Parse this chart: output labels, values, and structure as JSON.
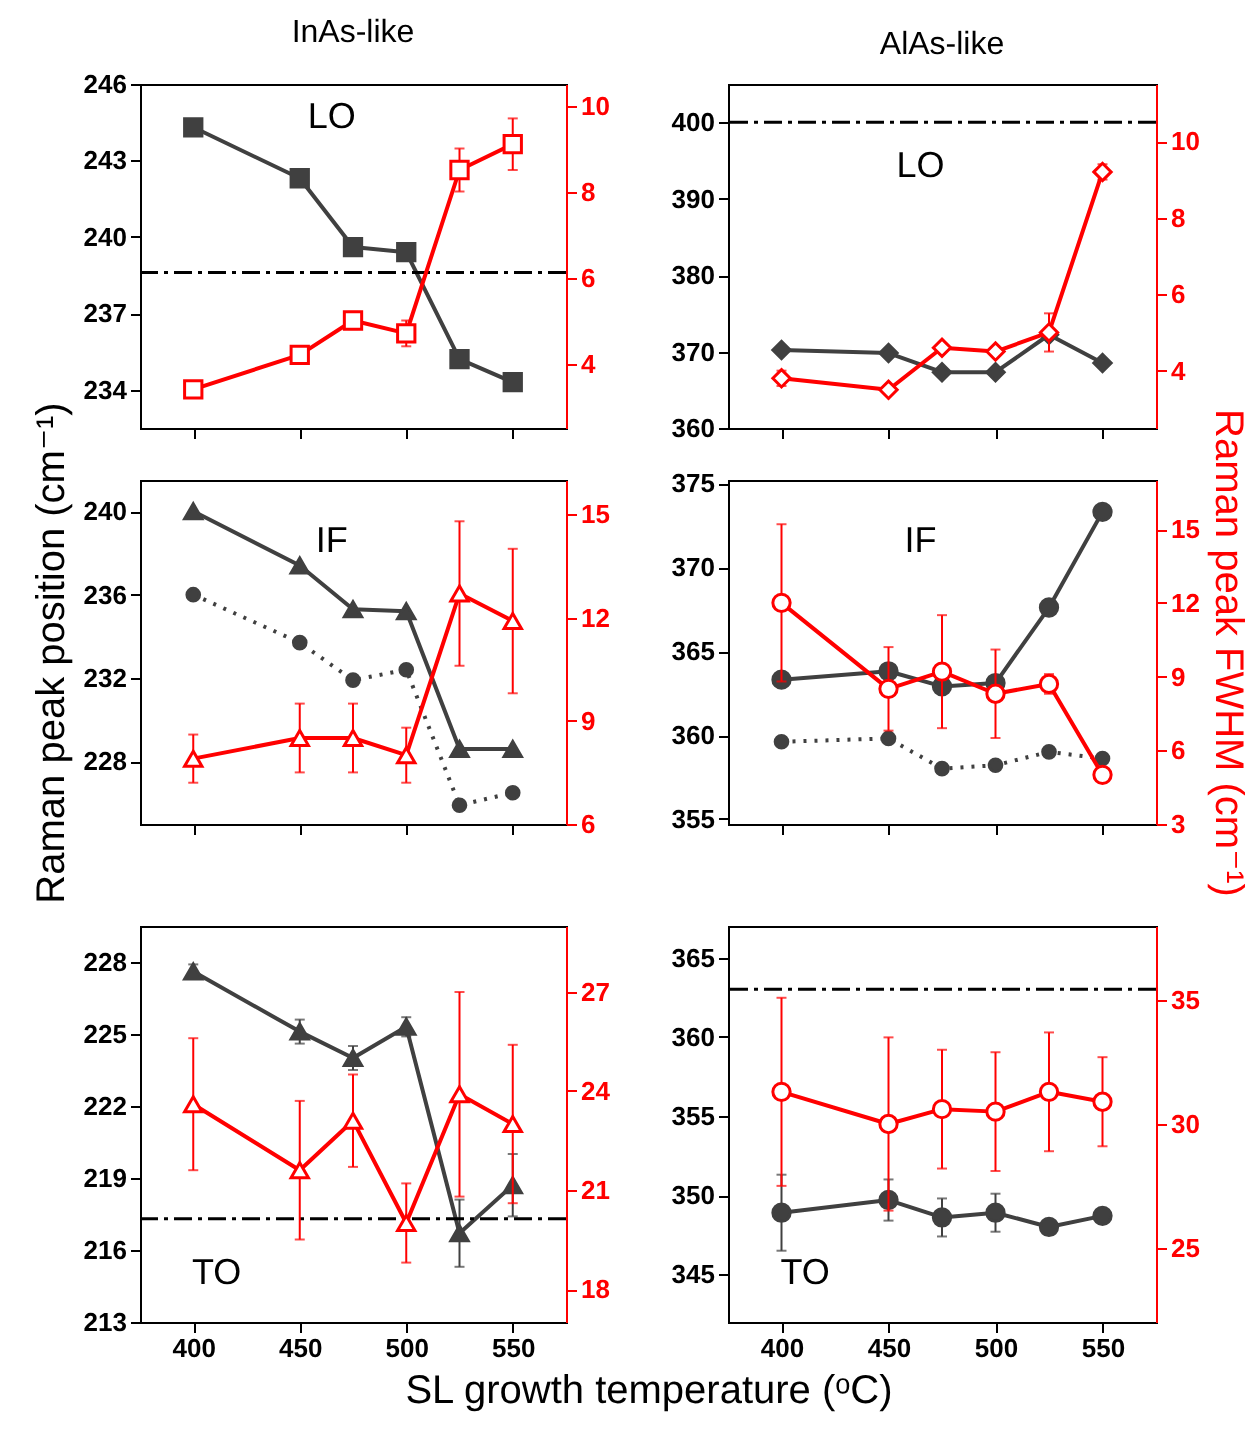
{
  "chart_data": [
    {
      "type": "line",
      "title": "InAs-like",
      "x": [
        400,
        450,
        475,
        500,
        525,
        550
      ],
      "xlim": [
        375,
        575
      ],
      "xticks": [
        400,
        450,
        500,
        550
      ],
      "ylim": [
        232.5,
        246
      ],
      "yticks": [
        234,
        237,
        240,
        243,
        246
      ],
      "y2lim": [
        2.5,
        10.5
      ],
      "y2ticks": [
        4,
        6,
        8,
        10
      ],
      "tick_labels": "y",
      "annotations": [
        "LO"
      ],
      "series": [
        {
          "color": "#404040",
          "marker": "square",
          "values": [
            244.3,
            242.3,
            239.6,
            239.4,
            235.2,
            234.3
          ]
        },
        {
          "axis": "y2",
          "color": "#ff0000",
          "marker": "square",
          "values": [
            3.4,
            4.2,
            5.0,
            4.7,
            8.5,
            9.1
          ],
          "errors": [
            0.1,
            0.2,
            0.2,
            0.3,
            0.5,
            0.6
          ]
        }
      ],
      "ref_lines": [
        {
          "axis": "y",
          "value": 238.6,
          "color": "#000000",
          "line_style": "dashed"
        }
      ]
    },
    {
      "type": "line",
      "title": "AlAs-like",
      "x": [
        400,
        450,
        475,
        500,
        525,
        550
      ],
      "xlim": [
        375,
        575
      ],
      "xticks": [
        400,
        450,
        500,
        550
      ],
      "ylim": [
        360,
        405
      ],
      "yticks": [
        360,
        370,
        380,
        390,
        400
      ],
      "y2lim": [
        2.5,
        11.5
      ],
      "y2ticks": [
        4,
        6,
        8,
        10
      ],
      "tick_labels": "y",
      "annotations": [
        "LO"
      ],
      "series": [
        {
          "color": "#404040",
          "marker": "diamond",
          "values": [
            370.2,
            369.8,
            367.3,
            367.3,
            372.2,
            368.5
          ]
        },
        {
          "axis": "y2",
          "color": "#ff0000",
          "marker": "diamond",
          "values": [
            3.8,
            3.5,
            4.6,
            4.5,
            5.0,
            9.2
          ],
          "errors": [
            0.2,
            0.1,
            0.1,
            0.1,
            0.5,
            0.2
          ]
        }
      ],
      "ref_lines": [
        {
          "axis": "y",
          "value": 400,
          "color": "#000000",
          "line_style": "dashed"
        }
      ]
    },
    {
      "type": "line",
      "ylabel": "Raman peak position (cm⁻¹)",
      "x": [
        400,
        450,
        475,
        500,
        525,
        550
      ],
      "xlim": [
        375,
        575
      ],
      "xticks": [
        400,
        450,
        500,
        550
      ],
      "ylim": [
        225,
        241.5
      ],
      "yticks": [
        228,
        232,
        236,
        240
      ],
      "y2lim": [
        6,
        16
      ],
      "y2ticks": [
        6,
        9,
        12,
        15
      ],
      "tick_labels": "y",
      "annotations": [
        "IF"
      ],
      "series": [
        {
          "color": "#404040",
          "marker": "triangle",
          "values": [
            240.0,
            237.4,
            235.3,
            235.2,
            228.6,
            228.6
          ]
        },
        {
          "color": "#404040",
          "marker": "circle",
          "line_style": "dotted",
          "values": [
            236.0,
            233.7,
            231.9,
            232.4,
            225.9,
            226.5
          ]
        },
        {
          "axis": "y2",
          "color": "#ff0000",
          "marker": "triangle",
          "values": [
            7.9,
            8.5,
            8.5,
            8.0,
            12.7,
            11.9
          ],
          "errors": [
            0.7,
            1.0,
            1.0,
            0.8,
            2.1,
            2.1
          ]
        }
      ]
    },
    {
      "type": "line",
      "y2label": "Raman peak FWHM (cm⁻¹)",
      "x": [
        400,
        450,
        475,
        500,
        525,
        550
      ],
      "xlim": [
        375,
        575
      ],
      "xticks": [
        400,
        450,
        500,
        550
      ],
      "ylim": [
        354.7,
        375.2
      ],
      "yticks": [
        355,
        360,
        365,
        370,
        375
      ],
      "y2lim": [
        3,
        17
      ],
      "y2ticks": [
        3,
        6,
        9,
        12,
        15
      ],
      "tick_labels": "y",
      "annotations": [
        "IF"
      ],
      "series": [
        {
          "color": "#404040",
          "marker": "circle",
          "values": [
            363.3,
            363.8,
            362.9,
            363.1,
            367.6,
            373.3
          ]
        },
        {
          "color": "#404040",
          "marker": "circle",
          "line_style": "dotted",
          "values": [
            359.6,
            359.8,
            358.0,
            358.2,
            359.0,
            358.6
          ]
        },
        {
          "axis": "y2",
          "color": "#ff0000",
          "marker": "circle",
          "values": [
            12.0,
            8.5,
            9.2,
            8.3,
            8.7,
            5.0
          ],
          "errors": [
            3.2,
            1.7,
            2.3,
            1.8,
            0.4,
            0.3
          ]
        }
      ]
    },
    {
      "type": "line",
      "xlabel": "SL growth temperature (ᵒC)",
      "x": [
        400,
        450,
        475,
        500,
        525,
        550
      ],
      "xlim": [
        375,
        575
      ],
      "xticks": [
        400,
        450,
        500,
        550
      ],
      "ylim": [
        213,
        229.5
      ],
      "yticks": [
        213,
        216,
        219,
        222,
        225,
        228
      ],
      "y2lim": [
        17,
        29
      ],
      "y2ticks": [
        18,
        21,
        24,
        27
      ],
      "annotations": [
        "TO"
      ],
      "series": [
        {
          "color": "#404040",
          "marker": "triangle",
          "values": [
            227.6,
            225.1,
            224.0,
            225.3,
            216.7,
            218.7
          ],
          "errors": [
            0.3,
            0.5,
            0.5,
            0.4,
            1.4,
            1.3
          ]
        },
        {
          "axis": "y2",
          "color": "#ff0000",
          "marker": "triangle",
          "values": [
            23.6,
            21.6,
            23.1,
            20.0,
            23.9,
            23.0
          ],
          "errors": [
            2.0,
            2.1,
            1.4,
            1.2,
            3.1,
            2.4
          ]
        }
      ],
      "ref_lines": [
        {
          "axis": "y",
          "value": 217.3,
          "color": "#000000",
          "line_style": "dashed"
        }
      ]
    },
    {
      "type": "line",
      "x": [
        400,
        450,
        475,
        500,
        525,
        550
      ],
      "xlim": [
        375,
        575
      ],
      "xticks": [
        400,
        450,
        500,
        550
      ],
      "ylim": [
        342,
        367
      ],
      "yticks": [
        345,
        350,
        355,
        360,
        365
      ],
      "y2lim": [
        22,
        38
      ],
      "y2ticks": [
        25,
        30,
        35
      ],
      "annotations": [
        "TO"
      ],
      "series": [
        {
          "color": "#404040",
          "marker": "circle",
          "values": [
            348.9,
            349.7,
            348.6,
            348.9,
            348.0,
            348.7
          ],
          "errors": [
            2.4,
            1.3,
            1.2,
            1.2,
            0.4,
            0.2
          ]
        },
        {
          "axis": "y2",
          "color": "#ff0000",
          "marker": "circle",
          "values": [
            31.3,
            30.0,
            30.6,
            30.5,
            31.3,
            30.9
          ],
          "errors": [
            3.8,
            3.5,
            2.4,
            2.4,
            2.4,
            1.8
          ]
        }
      ],
      "ref_lines": [
        {
          "axis": "y",
          "value": 363,
          "color": "#000000",
          "line_style": "dashed"
        }
      ]
    }
  ]
}
